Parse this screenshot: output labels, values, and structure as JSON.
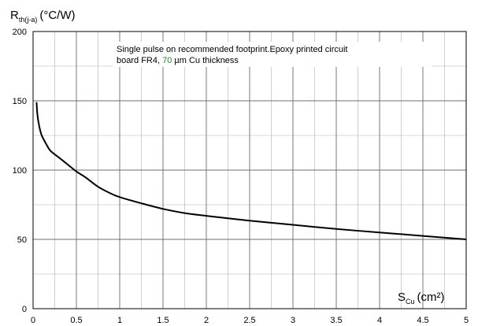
{
  "chart_data": {
    "type": "line",
    "ylabel": {
      "main": "R",
      "sub": "th(j-a)",
      "unit": "(°C/W)"
    },
    "xlabel": {
      "main": "S",
      "sub": "Cu",
      "unit": "(cm²)"
    },
    "xlim": [
      0,
      5
    ],
    "ylim": [
      0,
      200
    ],
    "x_ticks": [
      0,
      0.5,
      1,
      1.5,
      2,
      2.5,
      3,
      3.5,
      4,
      4.5,
      5
    ],
    "x_tick_labels": [
      "0",
      "0.5",
      "1",
      "1.5",
      "2",
      "2.5",
      "3",
      "3.5",
      "4",
      "4.5",
      "5"
    ],
    "y_ticks": [
      0,
      50,
      100,
      150,
      200
    ],
    "y_tick_labels": [
      "0",
      "50",
      "100",
      "150",
      "200"
    ],
    "x_minor_step": 0.25,
    "y_minor_step": 25,
    "grid": true,
    "annotation": {
      "line1": "Single pulse on recommended footprint.Epoxy printed circuit",
      "line2_a": "board FR4, ",
      "line2_b": "70",
      "line2_c": " µm Cu thickness"
    },
    "series": [
      {
        "color": "#000000",
        "points": [
          [
            0.04,
            149
          ],
          [
            0.05,
            140
          ],
          [
            0.07,
            132
          ],
          [
            0.1,
            125
          ],
          [
            0.15,
            119
          ],
          [
            0.2,
            114
          ],
          [
            0.3,
            109
          ],
          [
            0.4,
            104
          ],
          [
            0.5,
            99
          ],
          [
            0.6,
            95
          ],
          [
            0.75,
            88
          ],
          [
            0.9,
            83
          ],
          [
            1.0,
            80.5
          ],
          [
            1.25,
            76
          ],
          [
            1.5,
            72
          ],
          [
            1.75,
            69
          ],
          [
            2.0,
            67
          ],
          [
            2.5,
            63.5
          ],
          [
            3.0,
            60.5
          ],
          [
            3.5,
            57.5
          ],
          [
            4.0,
            55
          ],
          [
            4.5,
            52.5
          ],
          [
            5.0,
            50
          ]
        ]
      }
    ]
  }
}
